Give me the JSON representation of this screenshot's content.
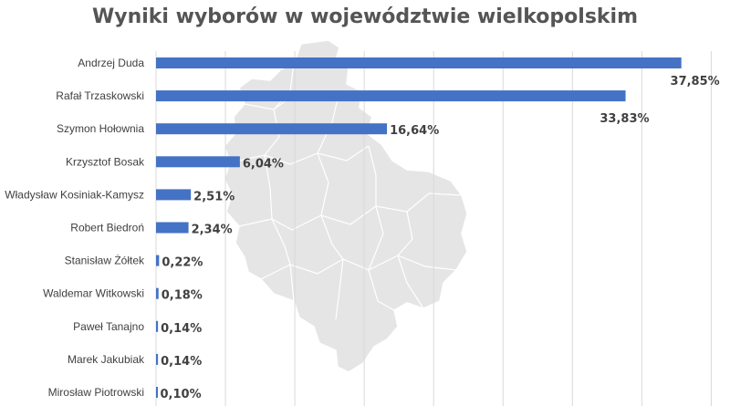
{
  "chart_data": {
    "type": "bar",
    "orientation": "horizontal",
    "title": "Wyniki wyborów w województwie wielkopolskim",
    "xlabel": "",
    "ylabel": "",
    "xlim": [
      0,
      40
    ],
    "grid": true,
    "legend": "none",
    "categories": [
      "Andrzej Duda",
      "Rafał Trzaskowski",
      "Szymon Hołownia",
      "Krzysztof Bosak",
      "Władysław Kosiniak-Kamysz",
      "Robert Biedroń",
      "Stanisław Żółtek",
      "Waldemar Witkowski",
      "Paweł Tanajno",
      "Marek Jakubiak",
      "Mirosław Piotrowski"
    ],
    "values": [
      37.85,
      33.83,
      16.64,
      6.04,
      2.51,
      2.34,
      0.22,
      0.18,
      0.14,
      0.14,
      0.1
    ],
    "data_labels": [
      "37,85%",
      "33,83%",
      "16,64%",
      "6,04%",
      "2,51%",
      "2,34%",
      "0,22%",
      "0,18%",
      "0,14%",
      "0,14%",
      "0,10%"
    ],
    "bar_color": "#4472c4",
    "background_map_color": "#e5e5e5"
  }
}
